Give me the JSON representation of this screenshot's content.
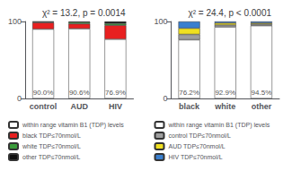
{
  "chart_data": [
    {
      "type": "bar",
      "title": "χ² = 13.2, p = 0.0014",
      "categories": [
        "control",
        "AUD",
        "HIV"
      ],
      "stacked": true,
      "grid": false,
      "legend": "bottom",
      "ylim": [
        0,
        100
      ],
      "yticks": [
        0,
        100
      ],
      "series": [
        {
          "name": "within range vitamin B1 (TDP) levels",
          "color": "#ffffff",
          "values": [
            90.0,
            90.6,
            76.9
          ],
          "data_labels": true,
          "value_labels": [
            "90.0%",
            "90.6%",
            "76.9%"
          ]
        },
        {
          "name": "black TDP≤70nmol/L",
          "color": "#e82020",
          "values": [
            8.5,
            6.4,
            18.1
          ]
        },
        {
          "name": "white TDP≤70nmol/L",
          "color": "#3a9b3a",
          "values": [
            1.0,
            2.0,
            2.5
          ]
        },
        {
          "name": "other TDP≤70nmol/L",
          "color": "#111111",
          "values": [
            0.5,
            1.0,
            2.5
          ]
        }
      ]
    },
    {
      "type": "bar",
      "title": "χ² = 24.4, p < 0.0001",
      "categories": [
        "black",
        "white",
        "other"
      ],
      "stacked": true,
      "grid": false,
      "legend": "bottom",
      "ylim": [
        0,
        100
      ],
      "yticks": [
        0,
        100
      ],
      "series": [
        {
          "name": "within range vitamin B1 (TDP) levels",
          "color": "#ffffff",
          "values": [
            76.2,
            92.9,
            94.5
          ],
          "data_labels": true,
          "value_labels": [
            "76.2%",
            "92.9%",
            "94.5%"
          ]
        },
        {
          "name": "control TDP≤70nmol/L",
          "color": "#9e9e9e",
          "values": [
            7.0,
            2.5,
            2.0
          ]
        },
        {
          "name": "AUD TDP≤70nmol/L",
          "color": "#f0e020",
          "values": [
            8.0,
            2.6,
            1.5
          ]
        },
        {
          "name": "HIV TDP≤70nmol/L",
          "color": "#3a7fce",
          "values": [
            8.8,
            2.0,
            2.0
          ]
        }
      ]
    }
  ]
}
